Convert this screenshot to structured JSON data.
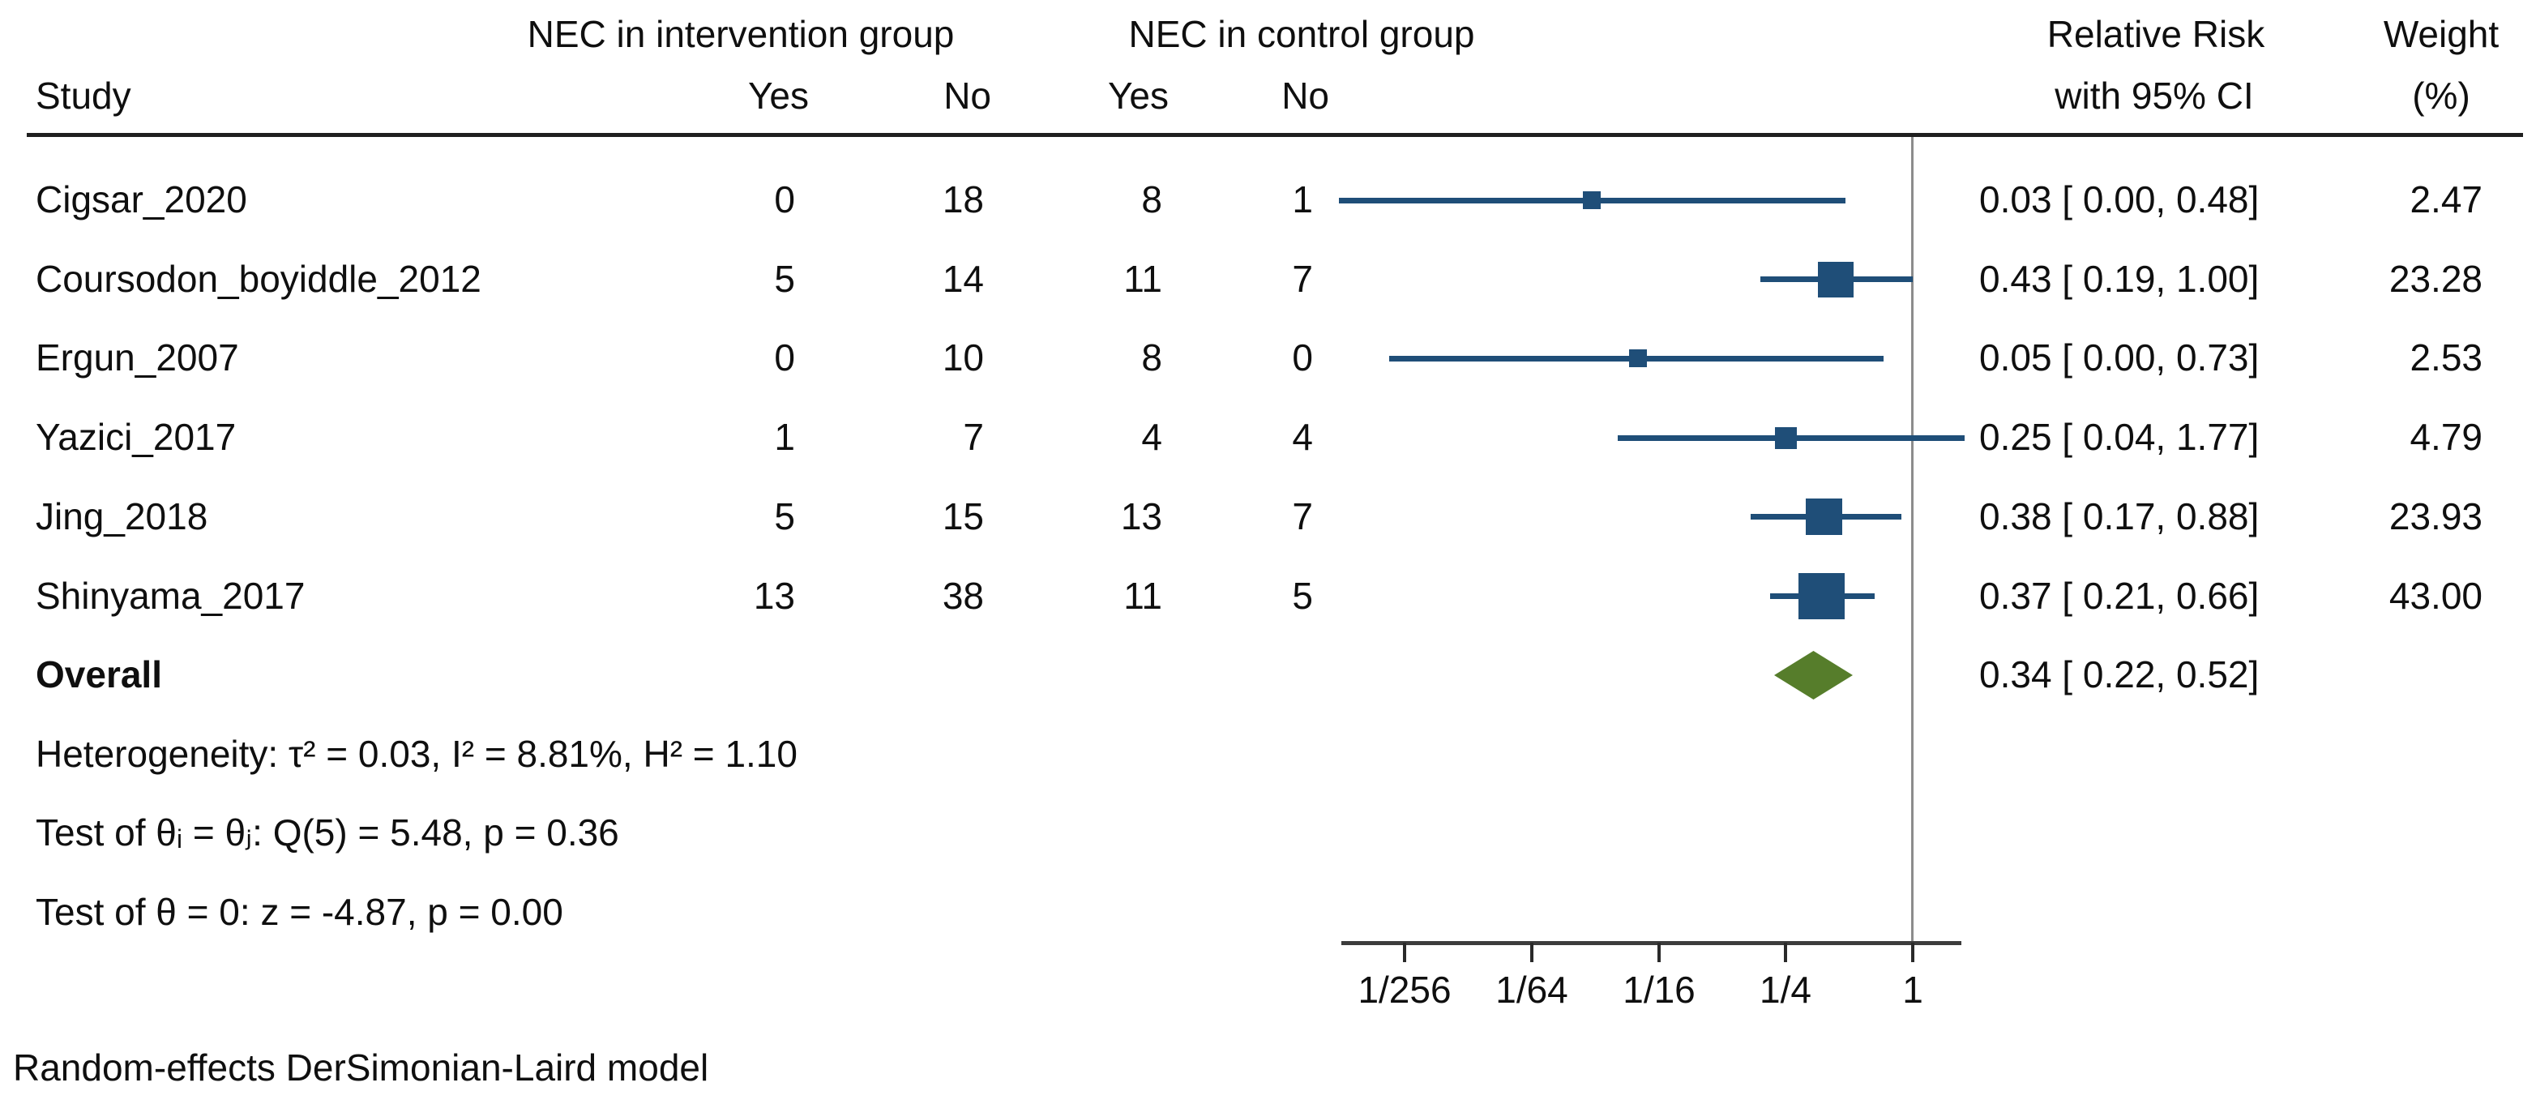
{
  "chart_data": {
    "type": "forest",
    "effect_measure": "Relative Risk",
    "model": "random-effects",
    "title_columns": {
      "study": "Study",
      "intervention_group": "NEC in intervention group",
      "control_group": "NEC in control group",
      "yes_intervention": "Yes",
      "no_intervention": "No",
      "yes_control": "Yes",
      "no_control": "No",
      "effect_line1": "Relative Risk",
      "effect_line2": "with 95% CI",
      "weight_line1": "Weight",
      "weight_line2": "(%)"
    },
    "x_axis": {
      "scale": "log",
      "reference_value": 1,
      "ticks": [
        {
          "label": "1/256",
          "value": 0.00390625
        },
        {
          "label": "1/64",
          "value": 0.015625
        },
        {
          "label": "1/16",
          "value": 0.0625
        },
        {
          "label": "1/4",
          "value": 0.25
        },
        {
          "label": "1",
          "value": 1
        }
      ]
    },
    "studies": [
      {
        "name": "Cigsar_2020",
        "int_yes": 0,
        "int_no": 18,
        "ctl_yes": 8,
        "ctl_no": 1,
        "rr": 0.03,
        "ci_lo": 0.0,
        "ci_hi": 0.48,
        "draw_lo": 0.0019,
        "ci_text": "0.03 [ 0.00, 0.48]",
        "weight": "2.47",
        "marker_size": 22
      },
      {
        "name": "Coursodon_boyiddle_2012",
        "int_yes": 5,
        "int_no": 14,
        "ctl_yes": 11,
        "ctl_no": 7,
        "rr": 0.43,
        "ci_lo": 0.19,
        "ci_hi": 1.0,
        "ci_text": "0.43 [ 0.19, 1.00]",
        "weight": "23.28",
        "marker_size": 44
      },
      {
        "name": "Ergun_2007",
        "int_yes": 0,
        "int_no": 10,
        "ctl_yes": 8,
        "ctl_no": 0,
        "rr": 0.05,
        "ci_lo": 0.0,
        "ci_hi": 0.73,
        "draw_lo": 0.0033,
        "ci_text": "0.05 [ 0.00, 0.73]",
        "weight": "2.53",
        "marker_size": 22
      },
      {
        "name": "Yazici_2017",
        "int_yes": 1,
        "int_no": 7,
        "ctl_yes": 4,
        "ctl_no": 4,
        "rr": 0.25,
        "ci_lo": 0.04,
        "ci_hi": 1.77,
        "ci_text": "0.25 [ 0.04, 1.77]",
        "weight": "4.79",
        "marker_size": 27
      },
      {
        "name": "Jing_2018",
        "int_yes": 5,
        "int_no": 15,
        "ctl_yes": 13,
        "ctl_no": 7,
        "rr": 0.38,
        "ci_lo": 0.17,
        "ci_hi": 0.88,
        "ci_text": "0.38 [ 0.17, 0.88]",
        "weight": "23.93",
        "marker_size": 45
      },
      {
        "name": "Shinyama_2017",
        "int_yes": 13,
        "int_no": 38,
        "ctl_yes": 11,
        "ctl_no": 5,
        "rr": 0.37,
        "ci_lo": 0.21,
        "ci_hi": 0.66,
        "ci_text": "0.37 [ 0.21, 0.66]",
        "weight": "43.00",
        "marker_size": 57
      }
    ],
    "overall": {
      "label": "Overall",
      "rr": 0.34,
      "ci_lo": 0.22,
      "ci_hi": 0.52,
      "ci_text": "0.34 [ 0.22, 0.52]"
    },
    "stats_lines": [
      "Heterogeneity: τ² = 0.03, I² = 8.81%, H² = 1.10",
      "Test of θᵢ = θⱼ: Q(5) = 5.48, p = 0.36",
      "Test of θ = 0: z = -4.87, p = 0.00"
    ],
    "footer": "Random-effects DerSimonian-Laird model",
    "colors": {
      "marker": "#1F4E78",
      "ci_line": "#1F4E78",
      "diamond": "#567D2B",
      "reference_line": "#8C8C8C",
      "axis_line": "#3C3C3C",
      "header_rule": "#1F1F1F",
      "text": "#0F0F0F"
    }
  }
}
